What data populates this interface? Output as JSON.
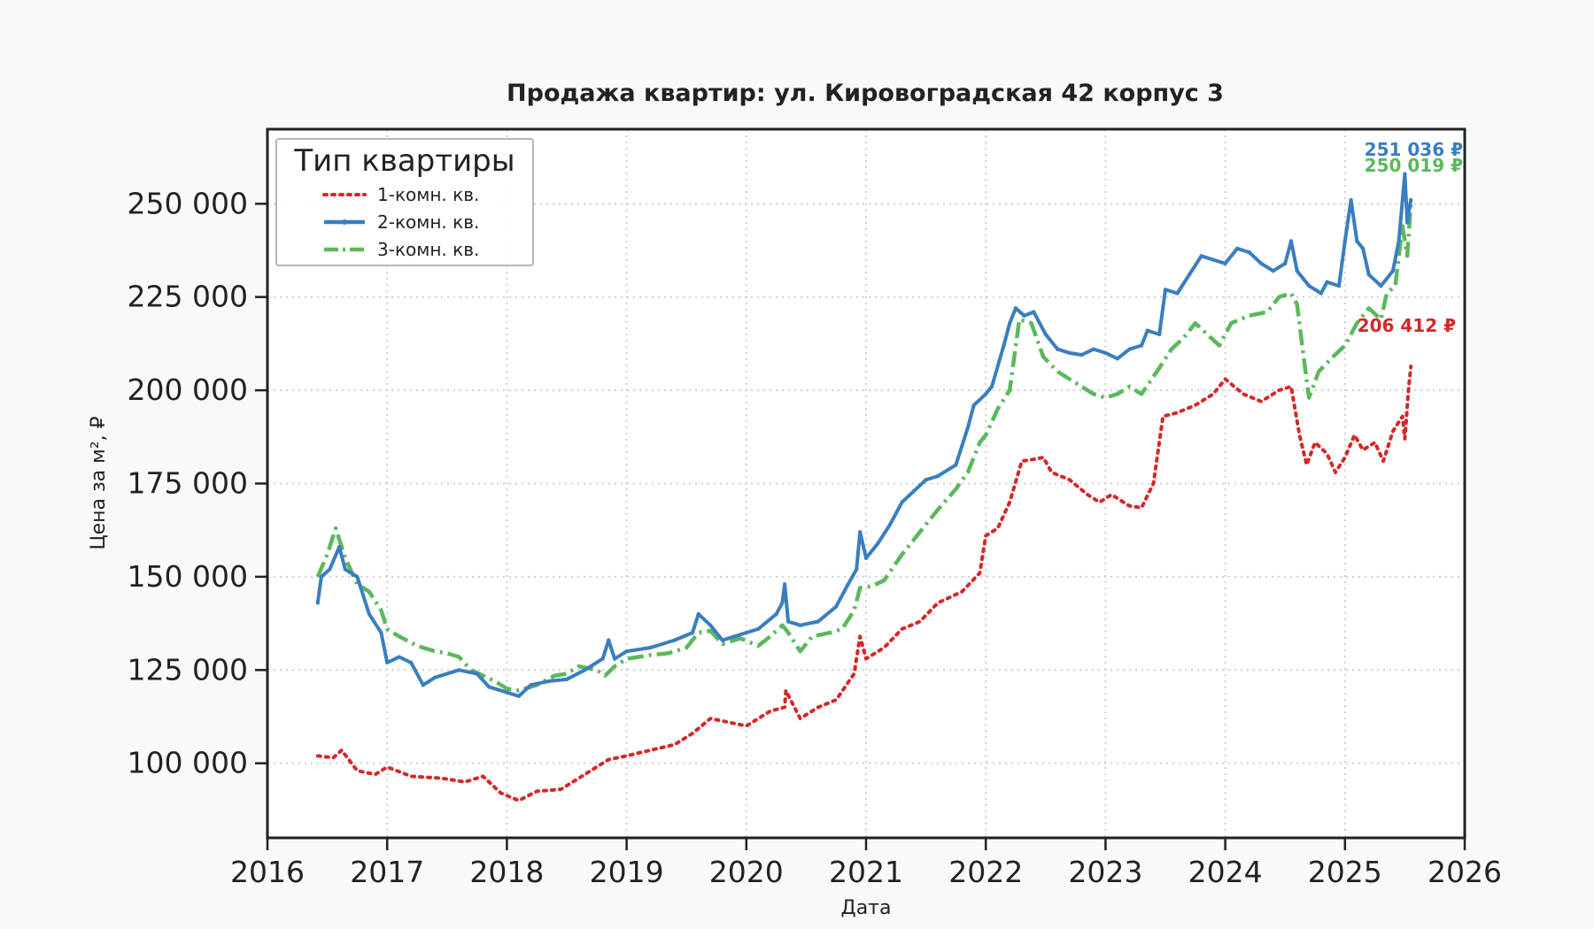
{
  "chart_data": {
    "type": "line",
    "title": "Продажа квартир: ул. Кировоградская 42 корпус 3",
    "xlabel": "Дата",
    "ylabel": "Цена за м², ₽",
    "xlim": [
      2016,
      2026
    ],
    "ylim": [
      80000,
      270000
    ],
    "x_ticks": [
      "2016",
      "2017",
      "2018",
      "2019",
      "2020",
      "2021",
      "2022",
      "2023",
      "2024",
      "2025",
      "2026"
    ],
    "y_ticks": [
      {
        "value": 100000,
        "label": "100 000"
      },
      {
        "value": 125000,
        "label": "125 000"
      },
      {
        "value": 150000,
        "label": "150 000"
      },
      {
        "value": 175000,
        "label": "175 000"
      },
      {
        "value": 200000,
        "label": "200 000"
      },
      {
        "value": 225000,
        "label": "225 000"
      },
      {
        "value": 250000,
        "label": "250 000"
      }
    ],
    "grid": true,
    "legend": {
      "title": "Тип квартиры",
      "position": "top-left"
    },
    "series": [
      {
        "name": "1-комн. кв.",
        "color": "#d62728",
        "style": "dotted",
        "end_label": "206 412 ₽",
        "points": [
          [
            2016.42,
            102000
          ],
          [
            2016.55,
            101500
          ],
          [
            2016.62,
            103500
          ],
          [
            2016.75,
            98000
          ],
          [
            2016.9,
            97000
          ],
          [
            2017.0,
            99000
          ],
          [
            2017.2,
            96500
          ],
          [
            2017.45,
            96000
          ],
          [
            2017.65,
            95000
          ],
          [
            2017.8,
            96500
          ],
          [
            2017.95,
            92000
          ],
          [
            2018.1,
            90000
          ],
          [
            2018.25,
            92500
          ],
          [
            2018.45,
            93000
          ],
          [
            2018.55,
            95000
          ],
          [
            2018.7,
            98000
          ],
          [
            2018.85,
            101000
          ],
          [
            2019.0,
            102000
          ],
          [
            2019.2,
            103500
          ],
          [
            2019.4,
            105000
          ],
          [
            2019.55,
            108000
          ],
          [
            2019.7,
            112000
          ],
          [
            2019.85,
            111000
          ],
          [
            2020.0,
            110000
          ],
          [
            2020.2,
            114000
          ],
          [
            2020.32,
            115000
          ],
          [
            2020.33,
            119500
          ],
          [
            2020.45,
            112000
          ],
          [
            2020.6,
            115000
          ],
          [
            2020.75,
            117000
          ],
          [
            2020.9,
            124000
          ],
          [
            2020.95,
            134000
          ],
          [
            2021.0,
            128000
          ],
          [
            2021.15,
            131000
          ],
          [
            2021.3,
            136000
          ],
          [
            2021.45,
            138000
          ],
          [
            2021.6,
            143000
          ],
          [
            2021.8,
            146000
          ],
          [
            2021.95,
            151000
          ],
          [
            2022.0,
            161000
          ],
          [
            2022.1,
            163000
          ],
          [
            2022.2,
            170000
          ],
          [
            2022.3,
            181000
          ],
          [
            2022.4,
            181500
          ],
          [
            2022.48,
            182000
          ],
          [
            2022.55,
            178000
          ],
          [
            2022.7,
            176000
          ],
          [
            2022.85,
            172000
          ],
          [
            2022.95,
            170000
          ],
          [
            2023.05,
            172000
          ],
          [
            2023.2,
            169000
          ],
          [
            2023.3,
            168500
          ],
          [
            2023.4,
            175000
          ],
          [
            2023.48,
            193000
          ],
          [
            2023.6,
            194000
          ],
          [
            2023.75,
            196000
          ],
          [
            2023.9,
            199000
          ],
          [
            2024.0,
            203000
          ],
          [
            2024.15,
            199000
          ],
          [
            2024.3,
            197000
          ],
          [
            2024.45,
            200000
          ],
          [
            2024.55,
            201000
          ],
          [
            2024.62,
            188000
          ],
          [
            2024.68,
            180000
          ],
          [
            2024.75,
            186000
          ],
          [
            2024.85,
            183000
          ],
          [
            2024.92,
            178000
          ],
          [
            2025.0,
            182000
          ],
          [
            2025.08,
            188000
          ],
          [
            2025.15,
            184000
          ],
          [
            2025.25,
            186000
          ],
          [
            2025.32,
            181000
          ],
          [
            2025.4,
            189000
          ],
          [
            2025.48,
            193000
          ],
          [
            2025.5,
            187000
          ],
          [
            2025.53,
            200000
          ],
          [
            2025.55,
            206412
          ]
        ]
      },
      {
        "name": "2-комн. кв.",
        "color": "#3a7ebf",
        "style": "solid",
        "end_label": "251 036 ₽",
        "points": [
          [
            2016.42,
            143000
          ],
          [
            2016.45,
            150000
          ],
          [
            2016.52,
            152000
          ],
          [
            2016.6,
            158000
          ],
          [
            2016.65,
            152000
          ],
          [
            2016.75,
            150000
          ],
          [
            2016.85,
            140000
          ],
          [
            2016.95,
            135000
          ],
          [
            2017.0,
            127000
          ],
          [
            2017.1,
            128500
          ],
          [
            2017.2,
            127000
          ],
          [
            2017.3,
            121000
          ],
          [
            2017.4,
            123000
          ],
          [
            2017.6,
            125000
          ],
          [
            2017.75,
            124000
          ],
          [
            2017.85,
            120500
          ],
          [
            2018.0,
            119000
          ],
          [
            2018.1,
            118000
          ],
          [
            2018.2,
            121000
          ],
          [
            2018.35,
            122000
          ],
          [
            2018.5,
            122500
          ],
          [
            2018.65,
            125000
          ],
          [
            2018.8,
            128000
          ],
          [
            2018.85,
            133000
          ],
          [
            2018.9,
            128000
          ],
          [
            2019.0,
            130000
          ],
          [
            2019.2,
            131000
          ],
          [
            2019.4,
            133000
          ],
          [
            2019.55,
            135000
          ],
          [
            2019.6,
            140000
          ],
          [
            2019.7,
            137000
          ],
          [
            2019.8,
            133000
          ],
          [
            2019.9,
            134000
          ],
          [
            2020.0,
            135000
          ],
          [
            2020.1,
            136000
          ],
          [
            2020.25,
            140000
          ],
          [
            2020.3,
            143000
          ],
          [
            2020.32,
            148000
          ],
          [
            2020.35,
            138000
          ],
          [
            2020.45,
            137000
          ],
          [
            2020.6,
            138000
          ],
          [
            2020.75,
            142000
          ],
          [
            2020.85,
            148000
          ],
          [
            2020.92,
            152000
          ],
          [
            2020.95,
            162000
          ],
          [
            2021.0,
            155000
          ],
          [
            2021.1,
            159000
          ],
          [
            2021.2,
            164000
          ],
          [
            2021.3,
            170000
          ],
          [
            2021.4,
            173000
          ],
          [
            2021.5,
            176000
          ],
          [
            2021.6,
            177000
          ],
          [
            2021.75,
            180000
          ],
          [
            2021.8,
            185000
          ],
          [
            2021.85,
            190000
          ],
          [
            2021.9,
            196000
          ],
          [
            2022.0,
            199000
          ],
          [
            2022.05,
            201000
          ],
          [
            2022.15,
            212000
          ],
          [
            2022.2,
            218000
          ],
          [
            2022.25,
            222000
          ],
          [
            2022.32,
            220000
          ],
          [
            2022.4,
            221000
          ],
          [
            2022.5,
            215000
          ],
          [
            2022.6,
            211000
          ],
          [
            2022.7,
            210000
          ],
          [
            2022.8,
            209500
          ],
          [
            2022.9,
            211000
          ],
          [
            2023.0,
            210000
          ],
          [
            2023.1,
            208500
          ],
          [
            2023.2,
            211000
          ],
          [
            2023.3,
            212000
          ],
          [
            2023.35,
            216000
          ],
          [
            2023.45,
            215000
          ],
          [
            2023.5,
            227000
          ],
          [
            2023.6,
            226000
          ],
          [
            2023.7,
            231000
          ],
          [
            2023.8,
            236000
          ],
          [
            2023.9,
            235000
          ],
          [
            2024.0,
            234000
          ],
          [
            2024.1,
            238000
          ],
          [
            2024.2,
            237000
          ],
          [
            2024.3,
            234000
          ],
          [
            2024.4,
            232000
          ],
          [
            2024.5,
            234000
          ],
          [
            2024.55,
            240000
          ],
          [
            2024.6,
            232000
          ],
          [
            2024.7,
            228000
          ],
          [
            2024.8,
            226000
          ],
          [
            2024.85,
            229000
          ],
          [
            2024.95,
            228000
          ],
          [
            2025.0,
            240000
          ],
          [
            2025.05,
            251000
          ],
          [
            2025.1,
            240000
          ],
          [
            2025.15,
            238000
          ],
          [
            2025.2,
            231000
          ],
          [
            2025.3,
            228000
          ],
          [
            2025.4,
            232000
          ],
          [
            2025.45,
            240000
          ],
          [
            2025.5,
            258000
          ],
          [
            2025.52,
            245000
          ],
          [
            2025.55,
            251036
          ]
        ]
      },
      {
        "name": "3-комн. кв.",
        "color": "#5cb85c",
        "style": "dashdot",
        "end_label": "250 019 ₽",
        "points": [
          [
            2016.42,
            150000
          ],
          [
            2016.5,
            156000
          ],
          [
            2016.57,
            163000
          ],
          [
            2016.65,
            155000
          ],
          [
            2016.75,
            148000
          ],
          [
            2016.85,
            146000
          ],
          [
            2016.95,
            141000
          ],
          [
            2017.0,
            136000
          ],
          [
            2017.1,
            134000
          ],
          [
            2017.25,
            131500
          ],
          [
            2017.4,
            130000
          ],
          [
            2017.5,
            129500
          ],
          [
            2017.6,
            128500
          ],
          [
            2017.7,
            125000
          ],
          [
            2017.8,
            123500
          ],
          [
            2017.9,
            122000
          ],
          [
            2018.0,
            120000
          ],
          [
            2018.1,
            119500
          ],
          [
            2018.25,
            121000
          ],
          [
            2018.4,
            123500
          ],
          [
            2018.5,
            124000
          ],
          [
            2018.6,
            126000
          ],
          [
            2018.75,
            125000
          ],
          [
            2018.82,
            123500
          ],
          [
            2018.9,
            126000
          ],
          [
            2019.0,
            128000
          ],
          [
            2019.2,
            129000
          ],
          [
            2019.35,
            129500
          ],
          [
            2019.5,
            131000
          ],
          [
            2019.6,
            135000
          ],
          [
            2019.7,
            135500
          ],
          [
            2019.8,
            132000
          ],
          [
            2019.95,
            133500
          ],
          [
            2020.1,
            131500
          ],
          [
            2020.2,
            134000
          ],
          [
            2020.3,
            137000
          ],
          [
            2020.35,
            135000
          ],
          [
            2020.45,
            130000
          ],
          [
            2020.55,
            134000
          ],
          [
            2020.7,
            135000
          ],
          [
            2020.8,
            136000
          ],
          [
            2020.9,
            141000
          ],
          [
            2020.95,
            147000
          ],
          [
            2021.05,
            147500
          ],
          [
            2021.15,
            149000
          ],
          [
            2021.3,
            156000
          ],
          [
            2021.45,
            162000
          ],
          [
            2021.6,
            168000
          ],
          [
            2021.75,
            173500
          ],
          [
            2021.85,
            178000
          ],
          [
            2021.95,
            186000
          ],
          [
            2022.0,
            188000
          ],
          [
            2022.1,
            195000
          ],
          [
            2022.2,
            200000
          ],
          [
            2022.28,
            219000
          ],
          [
            2022.38,
            218000
          ],
          [
            2022.48,
            209000
          ],
          [
            2022.6,
            205000
          ],
          [
            2022.75,
            202000
          ],
          [
            2022.9,
            199000
          ],
          [
            2023.0,
            198000
          ],
          [
            2023.1,
            199000
          ],
          [
            2023.2,
            201000
          ],
          [
            2023.3,
            199000
          ],
          [
            2023.45,
            206000
          ],
          [
            2023.55,
            211000
          ],
          [
            2023.65,
            214000
          ],
          [
            2023.75,
            218000
          ],
          [
            2023.85,
            215000
          ],
          [
            2023.95,
            212000
          ],
          [
            2024.05,
            218000
          ],
          [
            2024.2,
            220000
          ],
          [
            2024.35,
            221000
          ],
          [
            2024.45,
            225000
          ],
          [
            2024.55,
            226000
          ],
          [
            2024.6,
            223000
          ],
          [
            2024.65,
            210000
          ],
          [
            2024.7,
            198000
          ],
          [
            2024.78,
            205000
          ],
          [
            2024.9,
            209000
          ],
          [
            2025.0,
            212000
          ],
          [
            2025.1,
            218000
          ],
          [
            2025.2,
            222000
          ],
          [
            2025.3,
            219000
          ],
          [
            2025.35,
            226000
          ],
          [
            2025.42,
            228000
          ],
          [
            2025.48,
            244000
          ],
          [
            2025.52,
            236000
          ],
          [
            2025.55,
            250019
          ]
        ]
      }
    ]
  }
}
